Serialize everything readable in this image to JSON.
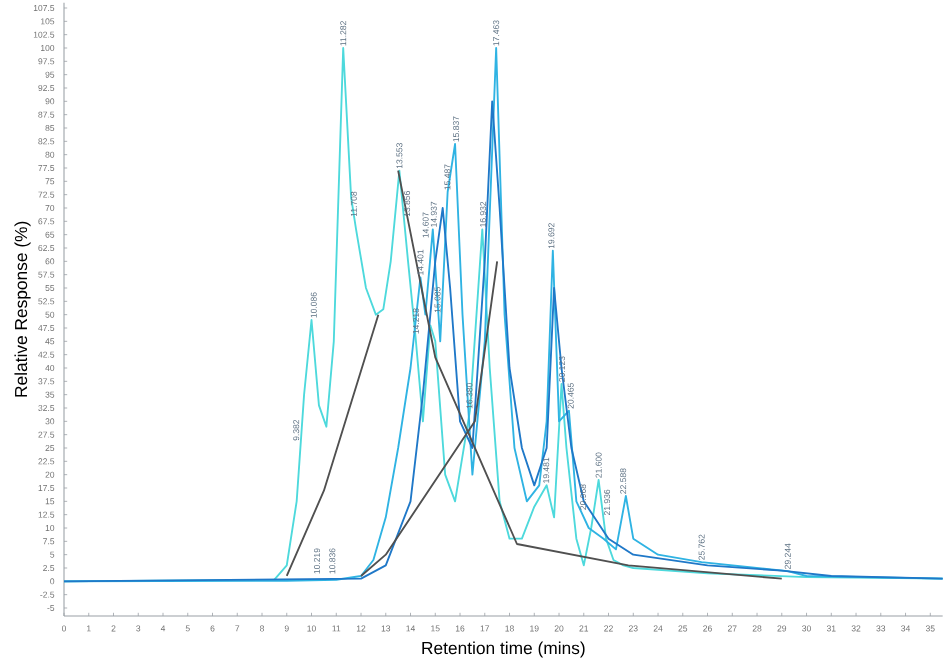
{
  "chart_data": {
    "type": "line",
    "xlabel": "Retention time (mins)",
    "ylabel": "Relative Response (%)",
    "xlim": [
      0,
      35.5
    ],
    "ylim": [
      -6.5,
      108.5
    ],
    "xticks": [
      0,
      1,
      2,
      3,
      4,
      5,
      6,
      7,
      8,
      9,
      10,
      11,
      12,
      13,
      14,
      15,
      16,
      17,
      18,
      19,
      20,
      21,
      22,
      23,
      24,
      25,
      26,
      27,
      28,
      29,
      30,
      31,
      32,
      33,
      34,
      35
    ],
    "yticks": [
      -5,
      -2.5,
      0,
      2.5,
      5,
      7.5,
      10,
      12.5,
      15,
      17.5,
      20,
      22.5,
      25,
      27.5,
      30,
      32.5,
      35,
      37.5,
      40,
      42.5,
      45,
      47.5,
      50,
      52.5,
      55,
      57.5,
      60,
      62.5,
      65,
      67.5,
      70,
      72.5,
      75,
      77.5,
      80,
      82.5,
      85,
      87.5,
      90,
      92.5,
      95,
      97.5,
      100,
      102.5,
      105,
      107.5
    ],
    "marker": "none",
    "line_style": "solid",
    "series": [
      {
        "color": "#4dd9dc",
        "x": [
          0,
          8.5,
          9.0,
          9.4,
          9.7,
          10.0,
          10.3,
          10.6,
          10.9,
          11.28,
          11.6,
          11.8,
          12.2,
          12.6,
          12.9,
          13.2,
          13.55,
          13.9,
          14.2,
          14.5,
          14.8,
          15.0,
          15.4,
          15.8,
          16.4,
          16.9,
          17.2,
          17.6,
          18.0,
          18.5,
          19.0,
          19.5,
          19.8,
          20.1,
          20.3,
          20.7,
          21.0,
          21.3,
          21.6,
          21.9,
          22.2,
          22.6,
          23,
          26,
          30,
          35.5
        ],
        "values": [
          0,
          0.3,
          3,
          15,
          35,
          49,
          33,
          29,
          45,
          100,
          72,
          66,
          55,
          50,
          51,
          60,
          77,
          60,
          46,
          30,
          48,
          45,
          20,
          15,
          32,
          66,
          40,
          15,
          8,
          8,
          14,
          18,
          12,
          37,
          25,
          8,
          3,
          10,
          19,
          8,
          4,
          3,
          2.5,
          1.5,
          0.8,
          0.5
        ]
      },
      {
        "color": "#2fb3e3",
        "x": [
          0,
          9,
          11,
          12,
          12.5,
          13,
          13.5,
          14,
          14.4,
          14.6,
          14.9,
          15.2,
          15.5,
          15.8,
          16.1,
          16.5,
          17.0,
          17.46,
          17.8,
          18.2,
          18.7,
          19.2,
          19.5,
          19.75,
          20.0,
          20.4,
          20.7,
          21.2,
          21.8,
          22.3,
          22.7,
          23,
          24,
          25.76,
          29.24,
          30,
          35.5
        ],
        "values": [
          0,
          0.1,
          0.3,
          1,
          4,
          12,
          25,
          40,
          57,
          50,
          66,
          45,
          73,
          82,
          50,
          20,
          45,
          100,
          50,
          25,
          15,
          18,
          30,
          62,
          30,
          32,
          15,
          10,
          8,
          6,
          16,
          8,
          5,
          3.6,
          1.9,
          1,
          0.5
        ]
      },
      {
        "color": "#1f78c8",
        "x": [
          0,
          12,
          13,
          14,
          14.5,
          15,
          15.3,
          15.6,
          16,
          16.5,
          17,
          17.3,
          17.6,
          18,
          18.5,
          19,
          19.5,
          19.8,
          20.1,
          20.5,
          21,
          22,
          23,
          26,
          29,
          31,
          35.5
        ],
        "values": [
          0,
          0.5,
          3,
          15,
          35,
          60,
          70,
          55,
          30,
          25,
          60,
          90,
          70,
          40,
          25,
          18,
          25,
          55,
          40,
          25,
          15,
          8,
          5,
          3,
          2,
          1,
          0.5
        ]
      },
      {
        "color": "#505050",
        "x": [
          9.0,
          10.5,
          12.7
        ],
        "values": [
          1,
          17,
          50
        ]
      },
      {
        "color": "#505050",
        "x": [
          12.0,
          13.0,
          16.6,
          17.5
        ],
        "values": [
          1,
          5,
          30,
          60
        ]
      },
      {
        "color": "#505050",
        "x": [
          13.5,
          15.0,
          18.3,
          22.8,
          29.0
        ],
        "values": [
          77,
          42,
          7,
          3,
          0.5
        ]
      }
    ],
    "annotations": [
      {
        "text": "9.382",
        "x": 9.38,
        "y": 26
      },
      {
        "text": "10.086",
        "x": 10.09,
        "y": 49
      },
      {
        "text": "10.219",
        "x": 10.22,
        "y": 1
      },
      {
        "text": "10.836",
        "x": 10.84,
        "y": 1
      },
      {
        "text": "11.282",
        "x": 11.28,
        "y": 100
      },
      {
        "text": "11.708",
        "x": 11.71,
        "y": 68
      },
      {
        "text": "13.553",
        "x": 13.55,
        "y": 77
      },
      {
        "text": "13.856",
        "x": 13.86,
        "y": 68
      },
      {
        "text": "14.218",
        "x": 14.22,
        "y": 46
      },
      {
        "text": "14.401",
        "x": 14.4,
        "y": 57
      },
      {
        "text": "14.607",
        "x": 14.61,
        "y": 64
      },
      {
        "text": "14.937",
        "x": 14.94,
        "y": 66
      },
      {
        "text": "15.085",
        "x": 15.09,
        "y": 50
      },
      {
        "text": "15.487",
        "x": 15.49,
        "y": 73
      },
      {
        "text": "15.837",
        "x": 15.84,
        "y": 82
      },
      {
        "text": "16.380",
        "x": 16.38,
        "y": 32
      },
      {
        "text": "16.932",
        "x": 16.93,
        "y": 66
      },
      {
        "text": "17.463",
        "x": 17.46,
        "y": 100
      },
      {
        "text": "19.481",
        "x": 19.48,
        "y": 18
      },
      {
        "text": "19.692",
        "x": 19.69,
        "y": 62
      },
      {
        "text": "20.123",
        "x": 20.12,
        "y": 37
      },
      {
        "text": "20.465",
        "x": 20.47,
        "y": 32
      },
      {
        "text": "20.968",
        "x": 20.97,
        "y": 13
      },
      {
        "text": "21.600",
        "x": 21.6,
        "y": 19
      },
      {
        "text": "21.936",
        "x": 21.94,
        "y": 12
      },
      {
        "text": "22.588",
        "x": 22.59,
        "y": 16
      },
      {
        "text": "25.762",
        "x": 25.76,
        "y": 3.6
      },
      {
        "text": "29.244",
        "x": 29.24,
        "y": 1.9
      }
    ]
  }
}
